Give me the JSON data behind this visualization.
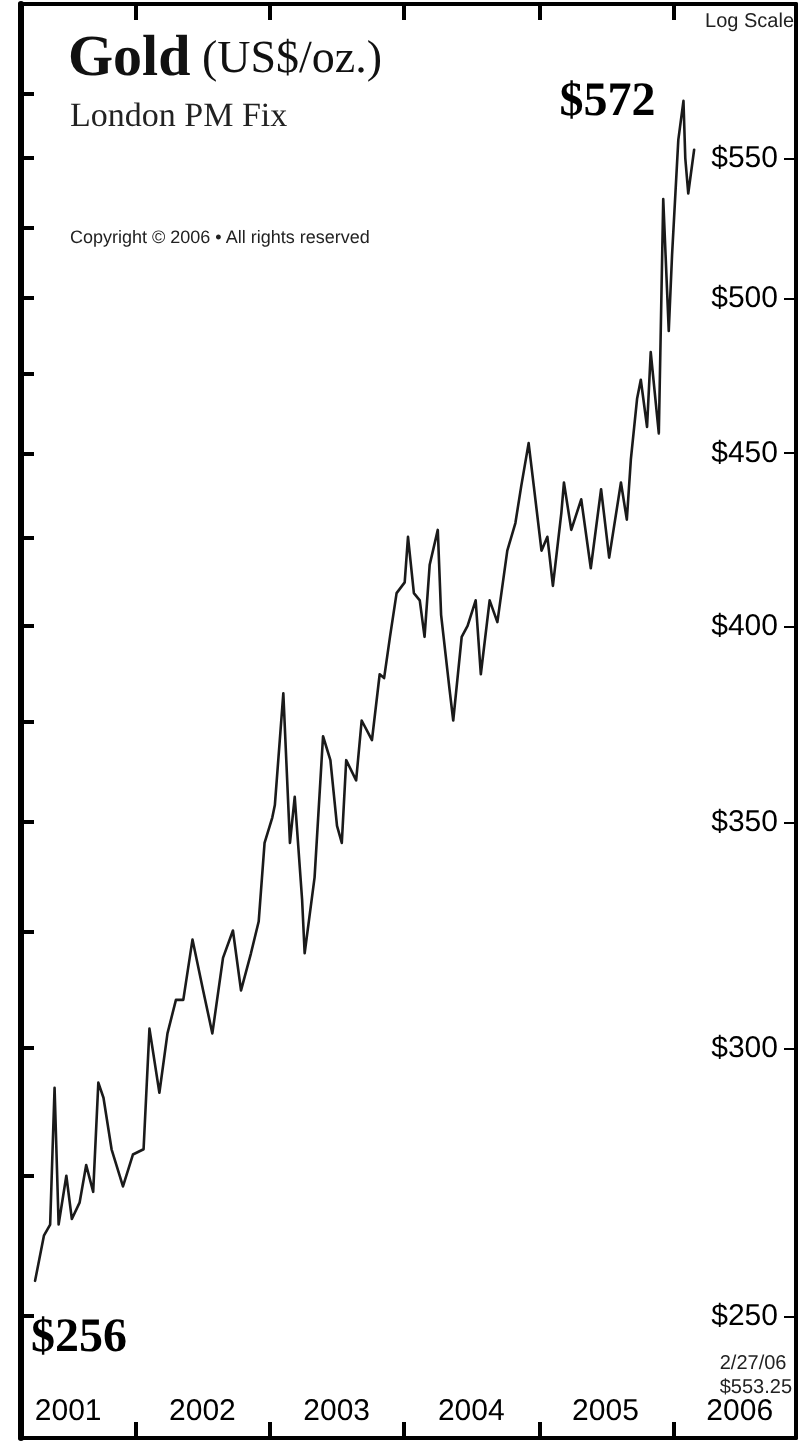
{
  "chart_data": {
    "type": "line",
    "title": "Gold (US$/oz.)",
    "subtitle": "London PM Fix",
    "annotations": [
      {
        "text": "$572",
        "x": "2006-01-29",
        "y": 572
      },
      {
        "text": "$256",
        "x": "2001-04-02",
        "y": 256
      },
      "Log Scale",
      "2/27/06\n$553.25",
      "Copyright © 2006 • All rights reserved"
    ],
    "log": "y",
    "marker": "none",
    "line_style": "solid",
    "xlim": [
      "2001-02-20",
      "2006-12-01"
    ],
    "xticks": [
      {
        "value": "2001-07-01",
        "label": "2001"
      },
      {
        "value": "2002-01-01",
        "label": null
      },
      {
        "value": "2002-07-01",
        "label": "2002"
      },
      {
        "value": "2003-01-01",
        "label": null
      },
      {
        "value": "2003-07-01",
        "label": "2003"
      },
      {
        "value": "2004-01-01",
        "label": null
      },
      {
        "value": "2004-07-01",
        "label": "2004"
      },
      {
        "value": "2005-01-01",
        "label": null
      },
      {
        "value": "2005-07-01",
        "label": "2005"
      },
      {
        "value": "2006-01-01",
        "label": null
      },
      {
        "value": "2006-07-01",
        "label": "2006"
      }
    ],
    "ylim": [
      230,
      611
    ],
    "yticks": [
      {
        "value": 250,
        "label": "$250"
      },
      {
        "value": 275,
        "label": null
      },
      {
        "value": 300,
        "label": "$300"
      },
      {
        "value": 325,
        "label": null
      },
      {
        "value": 350,
        "label": "$350"
      },
      {
        "value": 375,
        "label": null
      },
      {
        "value": 400,
        "label": "$400"
      },
      {
        "value": 425,
        "label": null
      },
      {
        "value": 450,
        "label": "$450"
      },
      {
        "value": 475,
        "label": null
      },
      {
        "value": 500,
        "label": "$500"
      },
      {
        "value": 525,
        "label": null
      },
      {
        "value": 550,
        "label": "$550"
      },
      {
        "value": 575,
        "label": null
      }
    ],
    "x": [
      "2001-04-02",
      "2001-04-26",
      "2001-05-13",
      "2001-05-25",
      "2001-06-05",
      "2001-06-26",
      "2001-07-11",
      "2001-08-01",
      "2001-08-19",
      "2001-09-07",
      "2001-09-21",
      "2001-10-05",
      "2001-10-27",
      "2001-11-27",
      "2001-12-24",
      "2002-01-22",
      "2002-02-07",
      "2002-03-06",
      "2002-03-28",
      "2002-04-20",
      "2002-05-10",
      "2002-06-04",
      "2002-07-03",
      "2002-07-28",
      "2002-08-26",
      "2002-09-22",
      "2002-10-14",
      "2002-11-10",
      "2002-12-01",
      "2002-12-17",
      "2003-01-07",
      "2003-01-14",
      "2003-02-06",
      "2003-02-24",
      "2003-03-09",
      "2003-03-29",
      "2003-04-05",
      "2003-05-02",
      "2003-05-25",
      "2003-06-14",
      "2003-07-02",
      "2003-07-15",
      "2003-07-27",
      "2003-08-23",
      "2003-09-07",
      "2003-10-05",
      "2003-10-26",
      "2003-11-07",
      "2003-11-23",
      "2003-12-11",
      "2004-01-02",
      "2004-01-11",
      "2004-01-27",
      "2004-02-12",
      "2004-02-25",
      "2004-03-10",
      "2004-04-01",
      "2004-04-10",
      "2004-05-03",
      "2004-05-13",
      "2004-06-05",
      "2004-06-21",
      "2004-07-13",
      "2004-07-27",
      "2004-08-20",
      "2004-09-10",
      "2004-10-07",
      "2004-10-29",
      "2004-11-14",
      "2004-12-04",
      "2004-12-18",
      "2005-01-08",
      "2005-01-24",
      "2005-02-08",
      "2005-03-03",
      "2005-03-10",
      "2005-03-30",
      "2005-04-26",
      "2005-05-22",
      "2005-06-19",
      "2005-07-11",
      "2005-08-12",
      "2005-08-28",
      "2005-09-08",
      "2005-09-25",
      "2005-10-05",
      "2005-10-22",
      "2005-11-01",
      "2005-11-23",
      "2005-12-05",
      "2005-12-20",
      "2005-12-29",
      "2006-01-15",
      "2006-01-29",
      "2006-02-03",
      "2006-02-11",
      "2006-02-27"
    ],
    "series": [
      {
        "color": "#1a1a1a",
        "values": [
          256,
          264,
          266,
          292,
          266,
          275,
          267,
          270,
          277,
          272,
          293,
          290,
          280,
          273,
          279,
          280,
          304,
          291,
          303,
          310,
          310,
          323,
          312,
          303,
          319,
          325,
          312,
          320,
          327,
          345,
          351,
          354,
          382,
          345,
          356,
          332,
          320,
          337,
          371,
          365,
          349,
          345,
          365,
          360,
          375,
          370,
          387,
          386,
          397,
          409,
          412,
          425,
          409,
          407,
          397,
          417,
          427,
          403,
          383,
          375,
          397,
          400,
          407,
          387,
          407,
          401,
          421,
          429,
          440,
          453,
          440,
          421,
          425,
          411,
          432,
          441,
          427,
          436,
          416,
          439,
          419,
          441,
          430,
          448,
          467,
          473,
          458,
          482,
          456,
          535,
          489,
          515,
          557,
          572,
          550,
          537,
          553.25
        ]
      }
    ]
  }
}
